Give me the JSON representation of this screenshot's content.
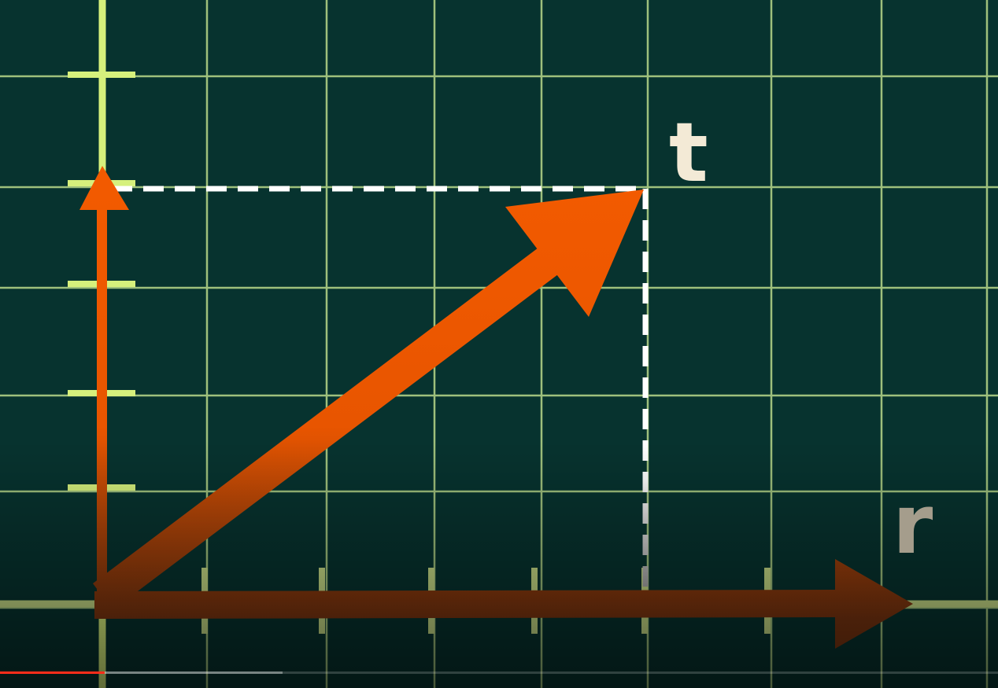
{
  "colors": {
    "background": "#07332f",
    "grid": "#b9d98a",
    "axis": "#d6f07c",
    "vector": "#f25a00",
    "vector_dark": "#7a3510",
    "guide": "#ffffff",
    "label_t": "#f3ead6",
    "label_r": "#a59d8c",
    "progress": "#ff2d1a"
  },
  "labels": {
    "t": "t",
    "r": "r"
  },
  "player": {
    "progress_played": 0.105,
    "progress_buffered": 0.283
  }
}
